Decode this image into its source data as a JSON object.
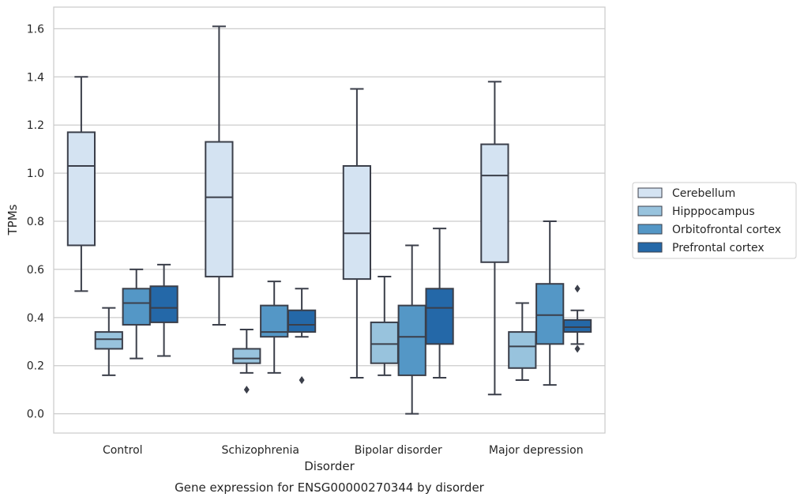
{
  "chart_data": {
    "type": "box",
    "caption": "Gene expression for ENSG00000270344 by disorder",
    "xlabel": "Disorder",
    "ylabel": "TPMs",
    "ylim": [
      -0.08,
      1.69
    ],
    "yticks": [
      "0.0",
      "0.2",
      "0.4",
      "0.6",
      "0.8",
      "1.0",
      "1.2",
      "1.4",
      "1.6"
    ],
    "grid": "horizontal",
    "legend_position": "right",
    "categories": [
      "Control",
      "Schizophrenia",
      "Bipolar disorder",
      "Major depression"
    ],
    "series": [
      {
        "name": "Cerebellum",
        "color": "#d4e3f2",
        "boxes": [
          {
            "whisker_low": 0.51,
            "q1": 0.7,
            "median": 1.03,
            "q3": 1.17,
            "whisker_high": 1.4,
            "outliers": []
          },
          {
            "whisker_low": 0.37,
            "q1": 0.57,
            "median": 0.9,
            "q3": 1.13,
            "whisker_high": 1.61,
            "outliers": []
          },
          {
            "whisker_low": 0.15,
            "q1": 0.56,
            "median": 0.75,
            "q3": 1.03,
            "whisker_high": 1.35,
            "outliers": []
          },
          {
            "whisker_low": 0.08,
            "q1": 0.63,
            "median": 0.99,
            "q3": 1.12,
            "whisker_high": 1.38,
            "outliers": []
          }
        ]
      },
      {
        "name": "Hipppocampus",
        "color": "#98c3dd",
        "boxes": [
          {
            "whisker_low": 0.16,
            "q1": 0.27,
            "median": 0.31,
            "q3": 0.34,
            "whisker_high": 0.44,
            "outliers": []
          },
          {
            "whisker_low": 0.17,
            "q1": 0.21,
            "median": 0.23,
            "q3": 0.27,
            "whisker_high": 0.35,
            "outliers": [
              0.1
            ]
          },
          {
            "whisker_low": 0.16,
            "q1": 0.21,
            "median": 0.29,
            "q3": 0.38,
            "whisker_high": 0.57,
            "outliers": []
          },
          {
            "whisker_low": 0.14,
            "q1": 0.19,
            "median": 0.28,
            "q3": 0.34,
            "whisker_high": 0.46,
            "outliers": []
          }
        ]
      },
      {
        "name": "Orbitofrontal cortex",
        "color": "#5497c6",
        "boxes": [
          {
            "whisker_low": 0.23,
            "q1": 0.37,
            "median": 0.46,
            "q3": 0.52,
            "whisker_high": 0.6,
            "outliers": []
          },
          {
            "whisker_low": 0.17,
            "q1": 0.32,
            "median": 0.34,
            "q3": 0.45,
            "whisker_high": 0.55,
            "outliers": []
          },
          {
            "whisker_low": 0.0,
            "q1": 0.16,
            "median": 0.32,
            "q3": 0.45,
            "whisker_high": 0.7,
            "outliers": []
          },
          {
            "whisker_low": 0.12,
            "q1": 0.29,
            "median": 0.41,
            "q3": 0.54,
            "whisker_high": 0.8,
            "outliers": []
          }
        ]
      },
      {
        "name": "Prefrontal cortex",
        "color": "#2468a8",
        "boxes": [
          {
            "whisker_low": 0.24,
            "q1": 0.38,
            "median": 0.44,
            "q3": 0.53,
            "whisker_high": 0.62,
            "outliers": []
          },
          {
            "whisker_low": 0.32,
            "q1": 0.34,
            "median": 0.37,
            "q3": 0.43,
            "whisker_high": 0.52,
            "outliers": [
              0.14
            ]
          },
          {
            "whisker_low": 0.15,
            "q1": 0.29,
            "median": 0.44,
            "q3": 0.52,
            "whisker_high": 0.77,
            "outliers": []
          },
          {
            "whisker_low": 0.29,
            "q1": 0.34,
            "median": 0.36,
            "q3": 0.39,
            "whisker_high": 0.43,
            "outliers": [
              0.27,
              0.52
            ]
          }
        ]
      }
    ]
  }
}
